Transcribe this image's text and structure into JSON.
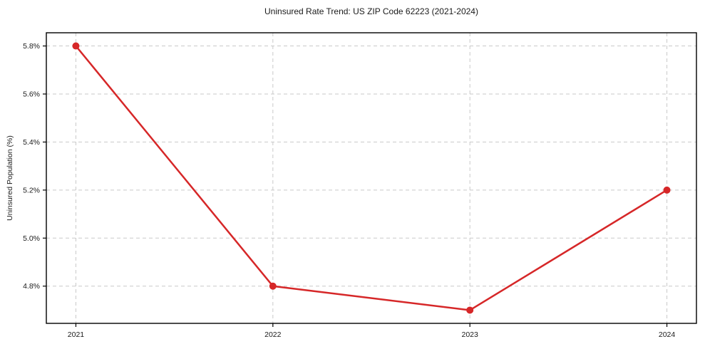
{
  "chart_data": {
    "type": "line",
    "title": "Uninsured Rate Trend: US ZIP Code 62223 (2021-2024)",
    "xlabel": "",
    "ylabel": "Uninsured Population (%)",
    "x": [
      2021,
      2022,
      2023,
      2024
    ],
    "x_tick_labels": [
      "2021",
      "2022",
      "2023",
      "2024"
    ],
    "series": [
      {
        "name": "Uninsured Population (%)",
        "values": [
          5.8,
          4.8,
          4.7,
          5.2
        ],
        "color": "#d62728"
      }
    ],
    "y_ticks": [
      4.8,
      5.0,
      5.2,
      5.4,
      5.6,
      5.8
    ],
    "y_tick_labels": [
      "4.8%",
      "5.0%",
      "5.2%",
      "5.4%",
      "5.6%",
      "5.8%"
    ],
    "xlim": [
      2020.85,
      2024.15
    ],
    "ylim": [
      4.645,
      5.855
    ],
    "grid": true,
    "grid_style": "dashed",
    "grid_color": "#c9c9c9",
    "spine_color": "#000000",
    "tick_color": "#1a1a1a",
    "legend": false,
    "marker": "circle",
    "marker_size": 5,
    "line_width": 2.5
  }
}
